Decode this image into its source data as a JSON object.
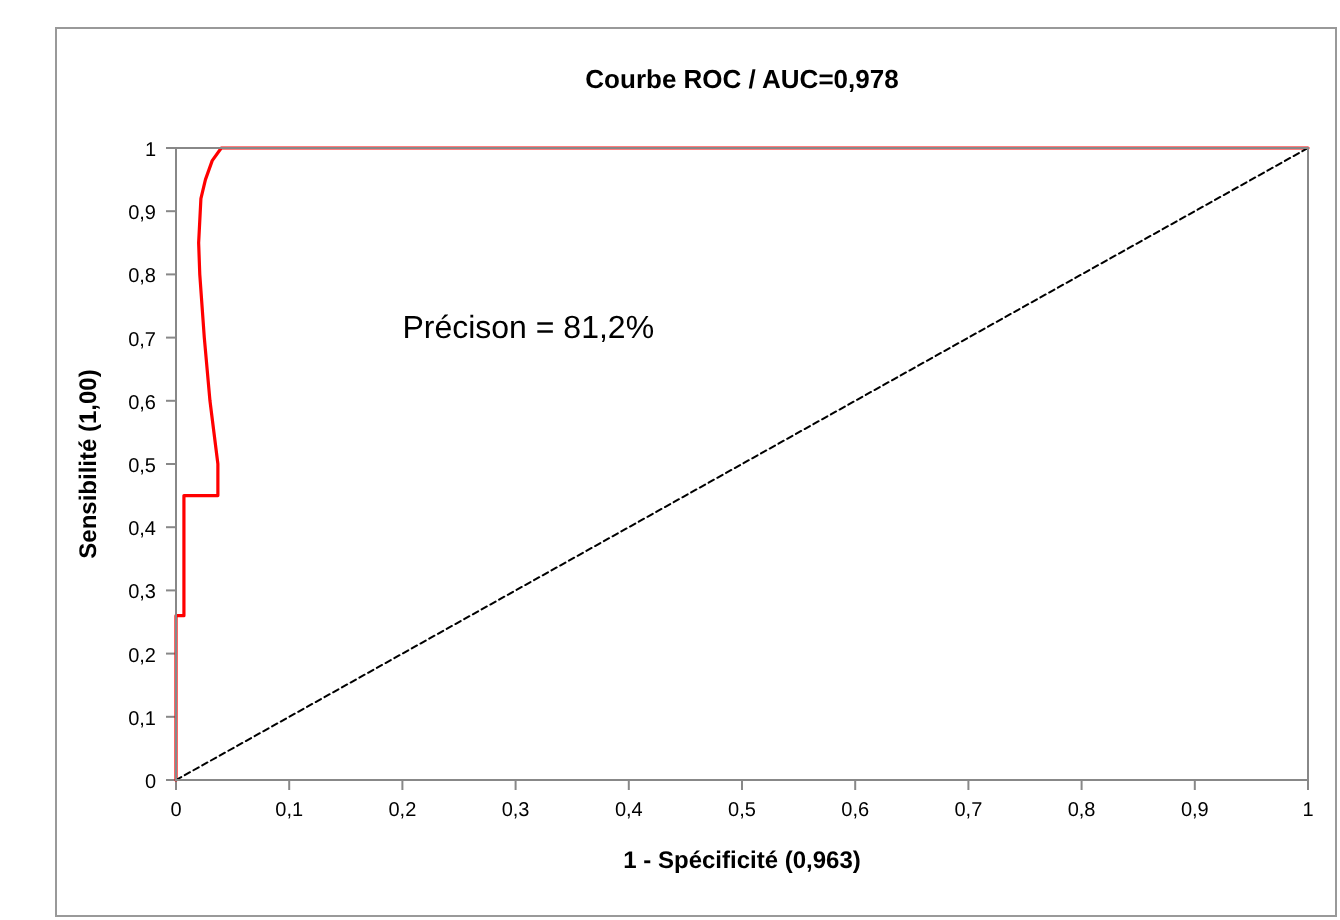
{
  "chart_data": {
    "type": "line",
    "title": "Courbe ROC / AUC=0,978",
    "xlabel": "1 - Spécificité (0,963)",
    "ylabel": "Sensibilité (1,00)",
    "series": [
      {
        "color": "#ff0000",
        "line_style": "solid",
        "x": [
          0,
          0,
          0.007,
          0.007,
          0.012,
          0.037,
          0.037,
          0.03,
          0.025,
          0.021,
          0.02,
          0.022,
          0.026,
          0.032,
          0.04,
          1
        ],
        "values": [
          0,
          0.26,
          0.26,
          0.45,
          0.45,
          0.45,
          0.5,
          0.6,
          0.7,
          0.8,
          0.85,
          0.92,
          0.95,
          0.98,
          1,
          1
        ]
      },
      {
        "color": "#000000",
        "line_style": "dotted",
        "x": [
          0,
          1
        ],
        "values": [
          0,
          1
        ]
      }
    ],
    "xlim": [
      0,
      1
    ],
    "ylim": [
      0,
      1
    ],
    "xticks": [
      0,
      {
        "value": 0.1,
        "label": "0,1"
      },
      {
        "value": 0.2,
        "label": "0,2"
      },
      {
        "value": 0.3,
        "label": "0,3"
      },
      {
        "value": 0.4,
        "label": "0,4"
      },
      {
        "value": 0.5,
        "label": "0,5"
      },
      {
        "value": 0.6,
        "label": "0,6"
      },
      {
        "value": 0.7,
        "label": "0,7"
      },
      {
        "value": 0.8,
        "label": "0,8"
      },
      {
        "value": 0.9,
        "label": "0,9"
      },
      1
    ],
    "yticks": [
      0,
      {
        "value": 0.1,
        "label": "0,1"
      },
      {
        "value": 0.2,
        "label": "0,2"
      },
      {
        "value": 0.3,
        "label": "0,3"
      },
      {
        "value": 0.4,
        "label": "0,4"
      },
      {
        "value": 0.5,
        "label": "0,5"
      },
      {
        "value": 0.6,
        "label": "0,6"
      },
      {
        "value": 0.7,
        "label": "0,7"
      },
      {
        "value": 0.8,
        "label": "0,8"
      },
      {
        "value": 0.9,
        "label": "0,9"
      },
      1
    ],
    "annotations": [
      "Précison = 81,2%"
    ],
    "grid": false,
    "marker": "none"
  }
}
